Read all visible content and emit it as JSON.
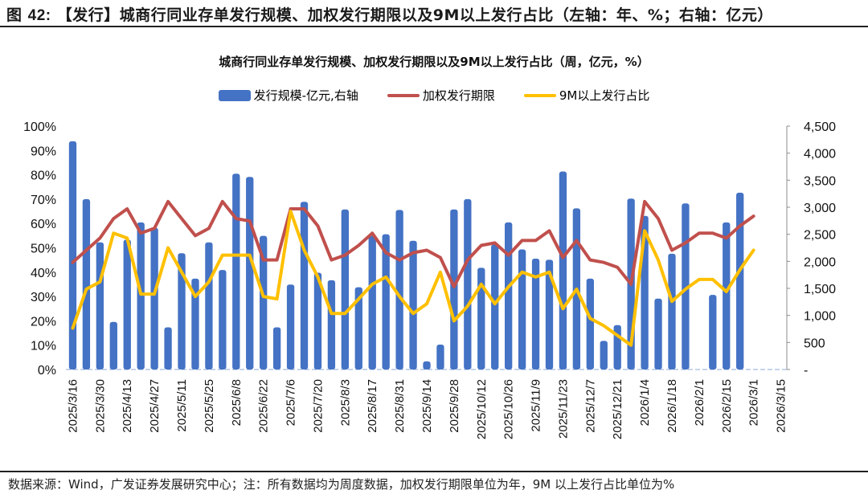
{
  "figure": {
    "prefix": "图",
    "number": "42:",
    "title": "【发行】城商行同业存单发行规模、加权发行期限以及9M以上发行占比（左轴：年、%；右轴：亿元）"
  },
  "source_note": "数据来源：Wind，广发证券发展研究中心；注：所有数据均为周度数据，加权发行期限单位为年，9M 以上发行占比单位为%",
  "chart_data": {
    "type": "bar+line",
    "title": "城商行同业存单发行规模、加权发行期限以及9M以上发行占比（周，亿元，%）",
    "legend_position": "top-center",
    "legend": [
      {
        "name": "发行规模-亿元,右轴",
        "kind": "bar",
        "color": "#4472C4"
      },
      {
        "name": "加权发行期限",
        "kind": "line",
        "color": "#C0504D"
      },
      {
        "name": "9M以上发行占比",
        "kind": "line",
        "color": "#FFC000"
      }
    ],
    "left_axis": {
      "min": 0,
      "max": 100,
      "step": 10,
      "unit": "%",
      "ticks": [
        "0%",
        "10%",
        "20%",
        "30%",
        "40%",
        "50%",
        "60%",
        "70%",
        "80%",
        "90%",
        "100%"
      ]
    },
    "right_axis": {
      "min": 0,
      "max": 4500,
      "step": 500,
      "ticks": [
        "-",
        "500",
        "1,000",
        "1,500",
        "2,000",
        "2,500",
        "3,000",
        "3,500",
        "4,000",
        "4,500"
      ]
    },
    "x_tick_labels": [
      "2025/3/16",
      "2025/3/30",
      "2025/4/13",
      "2025/4/27",
      "2025/5/11",
      "2025/5/25",
      "2025/6/8",
      "2025/6/22",
      "2025/7/6",
      "2025/7/20",
      "2025/8/3",
      "2025/8/17",
      "2025/8/31",
      "2025/9/14",
      "2025/9/28",
      "2025/10/12",
      "2025/10/26",
      "2025/11/9",
      "2025/11/23",
      "2025/12/7",
      "2025/12/21",
      "2026/1/4",
      "2026/1/18",
      "2026/2/1",
      "2026/2/15",
      "2026/3/1",
      "2026/3/15"
    ],
    "x_tick_every": 2,
    "series": [
      {
        "name": "发行规模-亿元,右轴",
        "axis": "right",
        "values": [
          4220,
          3150,
          2350,
          880,
          2400,
          2720,
          2620,
          780,
          2150,
          1680,
          2350,
          1840,
          3620,
          3560,
          2470,
          780,
          1570,
          3100,
          1790,
          1650,
          2960,
          1520,
          2470,
          2500,
          2950,
          2380,
          150,
          460,
          2960,
          3150,
          1880,
          2310,
          2720,
          2220,
          2050,
          2030,
          3660,
          2980,
          1680,
          530,
          820,
          3160,
          2840,
          1310,
          2140,
          3070,
          null,
          1380,
          2720,
          3270,
          null,
          null,
          null
        ]
      },
      {
        "name": "加权发行期限",
        "axis": "left",
        "values": [
          44,
          49,
          54,
          62,
          66,
          56,
          58,
          69,
          62,
          55,
          58,
          69,
          62,
          61,
          45,
          45,
          66,
          66,
          59,
          45,
          47,
          51,
          56,
          48,
          45,
          48,
          49,
          46,
          34,
          45,
          51,
          52,
          47,
          53,
          53,
          57,
          46,
          53,
          45,
          44,
          42,
          35,
          69,
          62,
          49,
          52,
          56,
          56,
          54,
          59,
          63,
          null,
          null
        ]
      },
      {
        "name": "9M以上发行占比",
        "axis": "left",
        "values": [
          17,
          33,
          36,
          56,
          54,
          31,
          31,
          50,
          40,
          30,
          36,
          47,
          47,
          47,
          30,
          29,
          65,
          49,
          38,
          23,
          23,
          29,
          35,
          38,
          30,
          23,
          27,
          40,
          20,
          26,
          35,
          27,
          34,
          40,
          38,
          40,
          25,
          33,
          21,
          18,
          14,
          10,
          57,
          45,
          28,
          33,
          37,
          37,
          32,
          41,
          49,
          null,
          null
        ]
      }
    ]
  }
}
